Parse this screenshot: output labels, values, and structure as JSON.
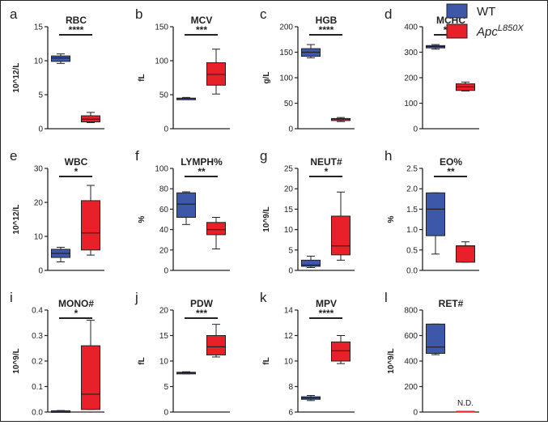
{
  "legend": {
    "placement": "top-right",
    "items": [
      {
        "label": "WT",
        "sup": "",
        "color": "#3d58a8"
      },
      {
        "label": "Apc",
        "sup": "L850X",
        "color": "#e8202a"
      }
    ]
  },
  "chart_data": [
    {
      "type": "box",
      "letter": "a",
      "title": "RBC",
      "ylabel": "10^12/L",
      "ylim": [
        0,
        15
      ],
      "yticks": [
        0,
        5,
        10,
        15
      ],
      "sig": "****",
      "boxes": [
        {
          "group": "WT",
          "min": 9.6,
          "q1": 9.9,
          "median": 10.4,
          "q3": 10.7,
          "max": 11.0
        },
        {
          "group": "Apc",
          "min": 0.9,
          "q1": 1.0,
          "median": 1.4,
          "q3": 1.9,
          "max": 2.4
        }
      ]
    },
    {
      "type": "box",
      "letter": "b",
      "title": "MCV",
      "ylabel": "fL",
      "ylim": [
        0,
        150
      ],
      "yticks": [
        0,
        50,
        100,
        150
      ],
      "sig": "***",
      "boxes": [
        {
          "group": "WT",
          "min": 43,
          "q1": 44,
          "median": 44.5,
          "q3": 45,
          "max": 46
        },
        {
          "group": "Apc",
          "min": 51,
          "q1": 64,
          "median": 80,
          "q3": 97,
          "max": 117
        }
      ]
    },
    {
      "type": "box",
      "letter": "c",
      "title": "HGB",
      "ylabel": "g/L",
      "ylim": [
        0,
        200
      ],
      "yticks": [
        0,
        50,
        100,
        150,
        200
      ],
      "sig": "****",
      "boxes": [
        {
          "group": "WT",
          "min": 139,
          "q1": 142,
          "median": 150,
          "q3": 157,
          "max": 165
        },
        {
          "group": "Apc",
          "min": 14,
          "q1": 16,
          "median": 19,
          "q3": 20,
          "max": 22
        }
      ]
    },
    {
      "type": "box",
      "letter": "d",
      "title": "MCHC",
      "ylabel": "",
      "ylim": [
        0,
        400
      ],
      "yticks": [
        0,
        100,
        200,
        300,
        400
      ],
      "sig": "****",
      "boxes": [
        {
          "group": "WT",
          "min": 312,
          "q1": 317,
          "median": 322,
          "q3": 326,
          "max": 330
        },
        {
          "group": "Apc",
          "min": 148,
          "q1": 150,
          "median": 164,
          "q3": 176,
          "max": 183
        }
      ]
    },
    {
      "type": "box",
      "letter": "e",
      "title": "WBC",
      "ylabel": "10^12/L",
      "ylim": [
        0,
        30
      ],
      "yticks": [
        0,
        10,
        20,
        30
      ],
      "sig": "*",
      "boxes": [
        {
          "group": "WT",
          "min": 2.5,
          "q1": 3.8,
          "median": 5.0,
          "q3": 6.2,
          "max": 6.8
        },
        {
          "group": "Apc",
          "min": 4.5,
          "q1": 6.0,
          "median": 11.0,
          "q3": 20.5,
          "max": 25.0
        }
      ]
    },
    {
      "type": "box",
      "letter": "f",
      "title": "LYMPH%",
      "ylabel": "%",
      "ylim": [
        0,
        100
      ],
      "yticks": [
        0,
        20,
        40,
        60,
        80,
        100
      ],
      "sig": "**",
      "boxes": [
        {
          "group": "WT",
          "min": 45,
          "q1": 52,
          "median": 65,
          "q3": 76,
          "max": 77
        },
        {
          "group": "Apc",
          "min": 21,
          "q1": 35,
          "median": 40,
          "q3": 47,
          "max": 52
        }
      ]
    },
    {
      "type": "box",
      "letter": "g",
      "title": "NEUT#",
      "ylabel": "10^9/L",
      "ylim": [
        0,
        25
      ],
      "yticks": [
        0,
        5,
        10,
        15,
        20,
        25
      ],
      "sig": "*",
      "boxes": [
        {
          "group": "WT",
          "min": 0.7,
          "q1": 1.0,
          "median": 1.3,
          "q3": 2.5,
          "max": 3.5
        },
        {
          "group": "Apc",
          "min": 2.5,
          "q1": 3.8,
          "median": 6.0,
          "q3": 13.3,
          "max": 19.2
        }
      ]
    },
    {
      "type": "box",
      "letter": "h",
      "title": "EO%",
      "ylabel": "%",
      "ylim": [
        0,
        2.5
      ],
      "yticks": [
        0.0,
        0.5,
        1.0,
        1.5,
        2.0,
        2.5
      ],
      "sig": "**",
      "boxes": [
        {
          "group": "WT",
          "min": 0.4,
          "q1": 0.85,
          "median": 1.5,
          "q3": 1.9,
          "max": 1.9
        },
        {
          "group": "Apc",
          "min": 0.2,
          "q1": 0.2,
          "median": 0.6,
          "q3": 0.6,
          "max": 0.7
        }
      ]
    },
    {
      "type": "box",
      "letter": "i",
      "title": "MONO#",
      "ylabel": "10^9/L",
      "ylim": [
        0,
        0.4
      ],
      "yticks": [
        0.0,
        0.1,
        0.2,
        0.3,
        0.4
      ],
      "sig": "*",
      "boxes": [
        {
          "group": "WT",
          "min": 0.0,
          "q1": 0.0,
          "median": 0.003,
          "q3": 0.005,
          "max": 0.006
        },
        {
          "group": "Apc",
          "min": 0.01,
          "q1": 0.01,
          "median": 0.07,
          "q3": 0.26,
          "max": 0.36
        }
      ]
    },
    {
      "type": "box",
      "letter": "j",
      "title": "PDW",
      "ylabel": "fL",
      "ylim": [
        0,
        20
      ],
      "yticks": [
        0,
        5,
        10,
        15,
        20
      ],
      "sig": "***",
      "boxes": [
        {
          "group": "WT",
          "min": 7.5,
          "q1": 7.6,
          "median": 7.7,
          "q3": 7.8,
          "max": 7.9
        },
        {
          "group": "Apc",
          "min": 10.8,
          "q1": 11.2,
          "median": 12.8,
          "q3": 15.0,
          "max": 17.2
        }
      ]
    },
    {
      "type": "box",
      "letter": "k",
      "title": "MPV",
      "ylabel": "fL",
      "ylim": [
        6,
        14
      ],
      "yticks": [
        6,
        8,
        10,
        12,
        14
      ],
      "sig": "****",
      "boxes": [
        {
          "group": "WT",
          "min": 6.9,
          "q1": 7.0,
          "median": 7.1,
          "q3": 7.2,
          "max": 7.3
        },
        {
          "group": "Apc",
          "min": 9.8,
          "q1": 10.0,
          "median": 10.8,
          "q3": 11.5,
          "max": 12.0
        }
      ]
    },
    {
      "type": "box",
      "letter": "l",
      "title": "RET#",
      "ylabel": "10^9/L",
      "ylim": [
        0,
        800
      ],
      "yticks": [
        0,
        200,
        400,
        600,
        800
      ],
      "sig": "",
      "note": "N.D.",
      "boxes": [
        {
          "group": "WT",
          "min": 450,
          "q1": 460,
          "median": 510,
          "q3": 690,
          "max": 690
        },
        {
          "group": "Apc",
          "min": 0,
          "q1": 0,
          "median": 0,
          "q3": 0,
          "max": 0
        }
      ]
    }
  ]
}
